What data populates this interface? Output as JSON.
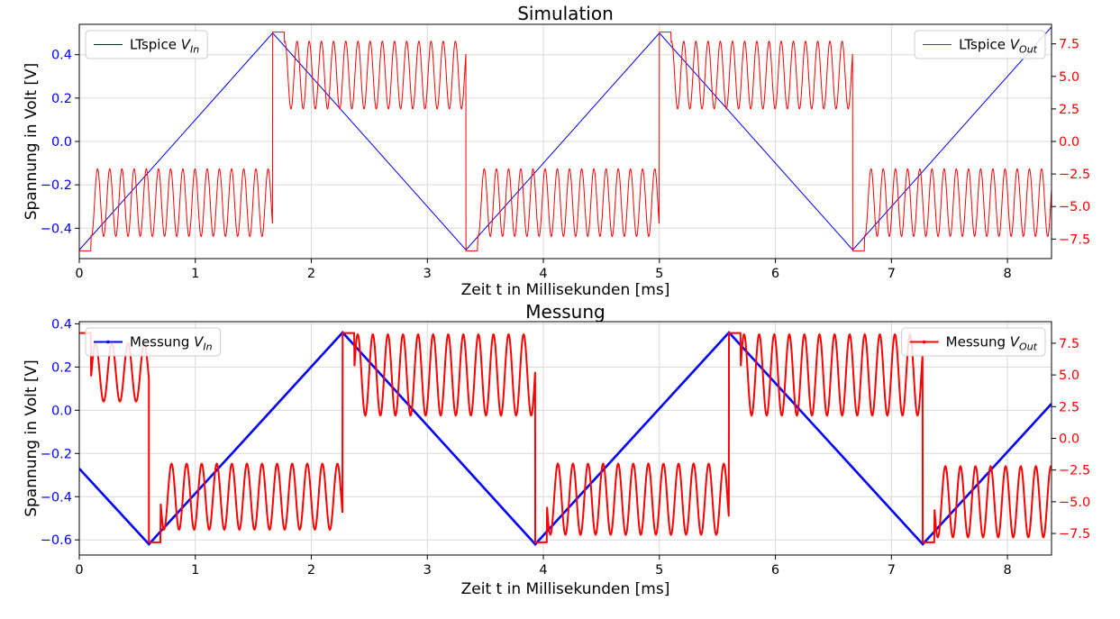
{
  "colors": {
    "vin": "#0000ff",
    "vout": "#ff0000",
    "axis": "#000000",
    "grid": "#d9d9d9"
  },
  "chart_data": [
    {
      "type": "line",
      "title": "Simulation",
      "xlabel": "Zeit t in Millisekunden [ms]",
      "ylabel": "Spannung in Volt [V]",
      "xlim": [
        0,
        8.38
      ],
      "xticks": [
        0,
        1,
        2,
        3,
        4,
        5,
        6,
        7,
        8
      ],
      "ylim_left": [
        -0.54,
        0.54
      ],
      "yticks_left": [
        -0.4,
        -0.2,
        0.0,
        0.2,
        0.4
      ],
      "ylim_right": [
        -9.0,
        9.0
      ],
      "yticks_right": [
        -7.5,
        -5.0,
        -2.5,
        0.0,
        2.5,
        5.0,
        7.5
      ],
      "grid": true,
      "series": [
        {
          "name": "LTspice V_In",
          "legend": {
            "prefix": "LTspice ",
            "sym": "V",
            "sub": "In"
          },
          "axis": "left",
          "color": "vin",
          "wave": "triangle",
          "x": [
            0,
            1.667,
            3.333,
            5.0,
            6.667,
            8.38
          ],
          "y": [
            -0.5,
            0.5,
            -0.5,
            0.5,
            -0.5,
            0.528
          ]
        },
        {
          "name": "LTspice V_Out",
          "legend": {
            "prefix": "LTspice ",
            "sym": "V",
            "sub": "Out"
          },
          "axis": "right",
          "color": "vout",
          "wave": "square-with-oscillation",
          "segments": [
            {
              "t_start": 0.0,
              "t_end": 1.667,
              "level": "low",
              "base": -4.7,
              "amplitude": 2.6,
              "period": 0.105
            },
            {
              "t_start": 1.667,
              "t_end": 3.333,
              "level": "high",
              "base": 5.1,
              "amplitude": 2.6,
              "period": 0.105
            },
            {
              "t_start": 3.333,
              "t_end": 5.0,
              "level": "low",
              "base": -4.7,
              "amplitude": 2.6,
              "period": 0.105
            },
            {
              "t_start": 5.0,
              "t_end": 6.667,
              "level": "high",
              "base": 5.1,
              "amplitude": 2.6,
              "period": 0.105
            },
            {
              "t_start": 6.667,
              "t_end": 8.38,
              "level": "low",
              "base": -4.7,
              "amplitude": 2.6,
              "period": 0.105
            }
          ],
          "clip": [
            -8.4,
            8.4
          ]
        }
      ],
      "legend_left_position": "top-left",
      "legend_right_position": "top-right"
    },
    {
      "type": "line",
      "title": "Messung",
      "xlabel": "Zeit t in Millisekunden [ms]",
      "ylabel": "Spannung in Volt [V]",
      "xlim": [
        0,
        8.38
      ],
      "xticks": [
        0,
        1,
        2,
        3,
        4,
        5,
        6,
        7,
        8
      ],
      "ylim_left": [
        -0.67,
        0.41
      ],
      "yticks_left": [
        -0.6,
        -0.4,
        -0.2,
        0.0,
        0.2,
        0.4
      ],
      "ylim_right": [
        -9.2,
        9.2
      ],
      "yticks_right": [
        -7.5,
        -5.0,
        -2.5,
        0.0,
        2.5,
        5.0,
        7.5
      ],
      "grid": true,
      "series": [
        {
          "name": "Messung V_In",
          "legend": {
            "prefix": "Messung ",
            "sym": "V",
            "sub": "In"
          },
          "axis": "left",
          "color": "vin",
          "wave": "triangle",
          "x": [
            0,
            0.6,
            2.27,
            3.93,
            5.6,
            7.27,
            8.38
          ],
          "y": [
            -0.27,
            -0.62,
            0.36,
            -0.62,
            0.36,
            -0.62,
            0.03
          ]
        },
        {
          "name": "Messung V_Out",
          "legend": {
            "prefix": "Messung ",
            "sym": "V",
            "sub": "Out"
          },
          "axis": "right",
          "color": "vout",
          "wave": "square-with-oscillation",
          "segments": [
            {
              "t_start": 0.0,
              "t_end": 0.6,
              "level": "high",
              "base": 5.2,
              "amplitude": 2.3,
              "period": 0.14
            },
            {
              "t_start": 0.6,
              "t_end": 2.27,
              "level": "low",
              "base": -4.6,
              "amplitude": 2.6,
              "period": 0.13
            },
            {
              "t_start": 2.27,
              "t_end": 3.93,
              "level": "high",
              "base": 5.0,
              "amplitude": 3.2,
              "period": 0.13
            },
            {
              "t_start": 3.93,
              "t_end": 5.6,
              "level": "low",
              "base": -4.8,
              "amplitude": 2.8,
              "period": 0.13
            },
            {
              "t_start": 5.6,
              "t_end": 7.27,
              "level": "high",
              "base": 5.0,
              "amplitude": 3.2,
              "period": 0.13
            },
            {
              "t_start": 7.27,
              "t_end": 8.38,
              "level": "low",
              "base": -5.0,
              "amplitude": 2.8,
              "period": 0.13
            }
          ],
          "clip": [
            -8.2,
            8.3
          ]
        }
      ],
      "legend_left_position": "top-left",
      "legend_right_position": "top-right"
    }
  ]
}
